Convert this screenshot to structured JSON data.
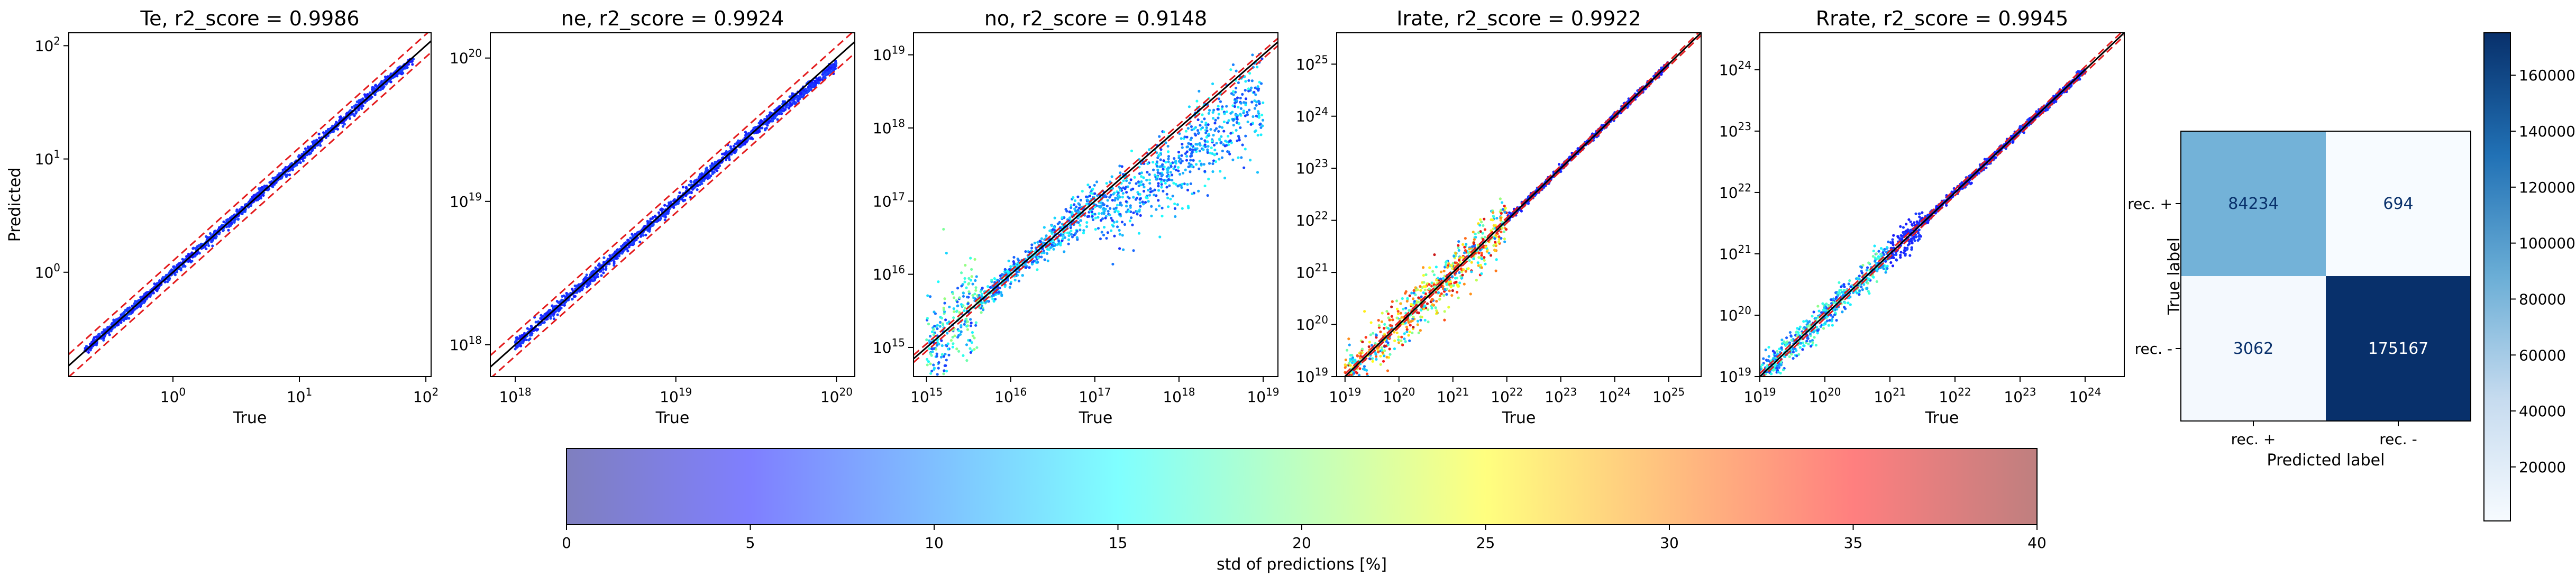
{
  "figure": {
    "panels": [
      {
        "id": "te",
        "title": "Te, r2_score = 0.9986",
        "xlabel": "True",
        "ylabel": "Predicted",
        "x_ticks": [
          "10^0",
          "10^1",
          "10^2"
        ],
        "y_ticks": [
          "10^0",
          "10^1",
          "10^2"
        ]
      },
      {
        "id": "ne",
        "title": "ne, r2_score = 0.9924",
        "xlabel": "True",
        "ylabel": "",
        "x_ticks": [
          "10^18",
          "10^19",
          "10^20"
        ],
        "y_ticks": [
          "10^18",
          "10^19",
          "10^20"
        ]
      },
      {
        "id": "no",
        "title": "no, r2_score = 0.9148",
        "xlabel": "True",
        "ylabel": "",
        "x_ticks": [
          "10^15",
          "10^16",
          "10^17",
          "10^18",
          "10^19"
        ],
        "y_ticks": [
          "10^15",
          "10^16",
          "10^17",
          "10^18",
          "10^19"
        ]
      },
      {
        "id": "irate",
        "title": "Irate, r2_score = 0.9922",
        "xlabel": "True",
        "ylabel": "",
        "x_ticks": [
          "10^19",
          "10^20",
          "10^21",
          "10^22",
          "10^23",
          "10^24",
          "10^25"
        ],
        "y_ticks": [
          "10^19",
          "10^20",
          "10^21",
          "10^22",
          "10^23",
          "10^24",
          "10^25"
        ]
      },
      {
        "id": "rrate",
        "title": "Rrate, r2_score = 0.9945",
        "xlabel": "True",
        "ylabel": "",
        "x_ticks": [
          "10^19",
          "10^20",
          "10^21",
          "10^22",
          "10^23",
          "10^24"
        ],
        "y_ticks": [
          "10^19",
          "10^20",
          "10^21",
          "10^22",
          "10^23",
          "10^24"
        ]
      }
    ],
    "confusion_matrix": {
      "xlabel": "Predicted label",
      "ylabel": "True label",
      "x_tick_labels": [
        "rec. +",
        "rec. -"
      ],
      "y_tick_labels": [
        "rec. +",
        "rec. -"
      ],
      "cells": [
        [
          "84234",
          "694"
        ],
        [
          "3062",
          "175167"
        ]
      ],
      "colorbar_ticks": [
        "20000",
        "40000",
        "60000",
        "80000",
        "100000",
        "120000",
        "140000",
        "160000"
      ]
    },
    "std_colorbar": {
      "label": "std of predictions [%]",
      "ticks": [
        "0",
        "5",
        "10",
        "15",
        "20",
        "25",
        "30",
        "35",
        "40"
      ]
    }
  },
  "chart_data": [
    {
      "type": "scatter",
      "title": "Te, r2_score = 0.9986",
      "xlabel": "True",
      "ylabel": "Predicted",
      "x_scale": "log",
      "y_scale": "log",
      "xlim": [
        0.15,
        110
      ],
      "ylim": [
        0.12,
        130
      ],
      "x": [
        0.2,
        0.5,
        1.0,
        2.0,
        5.0,
        10.0,
        20.0,
        50.0,
        80.0
      ],
      "y": [
        0.2,
        0.5,
        1.0,
        2.0,
        5.0,
        10.0,
        20.0,
        50.0,
        75.0
      ],
      "reference_line": "y = x (black)",
      "bound_lines": "red dashed",
      "color_encoding": "std of predictions [%]"
    },
    {
      "type": "scatter",
      "title": "ne, r2_score = 0.9924",
      "xlabel": "True",
      "ylabel": "",
      "x_scale": "log",
      "y_scale": "log",
      "xlim": [
        7e+17,
        1.3e+20
      ],
      "ylim": [
        6e+17,
        1.5e+20
      ],
      "x": [
        1e+18,
        3e+18,
        1e+19,
        3e+19,
        1e+20
      ],
      "y": [
        1e+18,
        3e+18,
        1e+19,
        3e+19,
        9e+19
      ],
      "reference_line": "y = x (black)",
      "bound_lines": "red dashed",
      "color_encoding": "std of predictions [%]"
    },
    {
      "type": "scatter",
      "title": "no, r2_score = 0.9148",
      "xlabel": "True",
      "ylabel": "",
      "x_scale": "log",
      "y_scale": "log",
      "xlim": [
        700000000000000.0,
        1.5e+19
      ],
      "ylim": [
        400000000000000.0,
        2e+19
      ],
      "x": [
        1000000000000000.0,
        1e+16,
        1e+17,
        1e+18,
        1e+19
      ],
      "y": [
        1000000000000000.0,
        1e+16,
        1e+17,
        5e+17,
        5e+18
      ],
      "reference_line": "y = x (black)",
      "bound_lines": "red dashed",
      "color_encoding": "std of predictions [%]"
    },
    {
      "type": "scatter",
      "title": "Irate, r2_score = 0.9922",
      "xlabel": "True",
      "ylabel": "",
      "x_scale": "log",
      "y_scale": "log",
      "xlim": [
        7e+18,
        4e+25
      ],
      "ylim": [
        1e+19,
        4e+25
      ],
      "x": [
        1e+19,
        1e+20,
        1e+21,
        1e+22,
        1e+23,
        1e+24,
        1e+25
      ],
      "y": [
        1e+19,
        1e+20,
        1e+21,
        1e+22,
        1e+23,
        1e+24,
        1e+25
      ],
      "reference_line": "y = x (black)",
      "bound_lines": "red dashed",
      "color_encoding": "std of predictions [%]"
    },
    {
      "type": "scatter",
      "title": "Rrate, r2_score = 0.9945",
      "xlabel": "True",
      "ylabel": "",
      "x_scale": "log",
      "y_scale": "log",
      "xlim": [
        1e+19,
        4e+24
      ],
      "ylim": [
        1e+19,
        4e+24
      ],
      "x": [
        1e+19,
        1e+20,
        1e+21,
        1e+22,
        1e+23,
        1e+24
      ],
      "y": [
        1e+19,
        1e+20,
        1e+21,
        1e+22,
        1e+23,
        1e+24
      ],
      "reference_line": "y = x (black)",
      "bound_lines": "red dashed",
      "color_encoding": "std of predictions [%]"
    },
    {
      "type": "heatmap",
      "title": "",
      "xlabel": "Predicted label",
      "ylabel": "True label",
      "categories_x": [
        "rec. +",
        "rec. -"
      ],
      "categories_y": [
        "rec. +",
        "rec. -"
      ],
      "values": [
        [
          84234,
          694
        ],
        [
          3062,
          175167
        ]
      ],
      "colormap": "Blues",
      "colorbar_range": [
        694,
        175167
      ]
    },
    {
      "type": "colorbar",
      "label": "std of predictions [%]",
      "range": [
        0,
        40
      ],
      "ticks": [
        0,
        5,
        10,
        15,
        20,
        25,
        30,
        35,
        40
      ],
      "colormap": "jet (alpha 0.5)"
    }
  ]
}
